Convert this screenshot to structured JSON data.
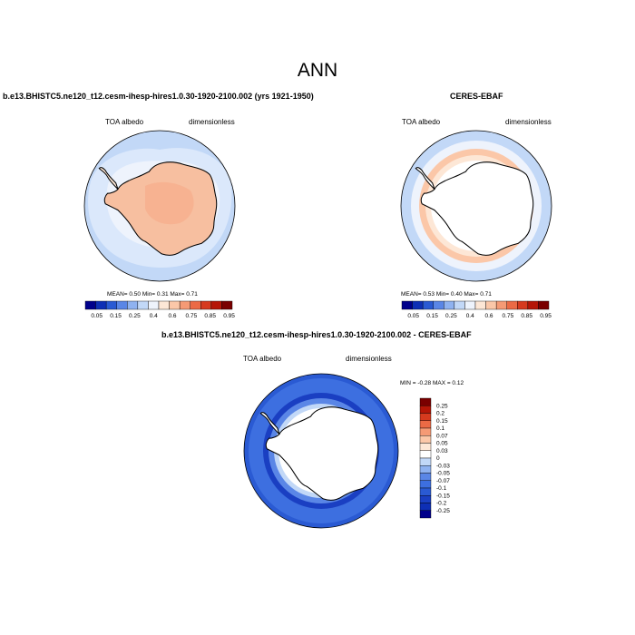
{
  "figure": {
    "title": "ANN"
  },
  "panels": [
    {
      "title": "b.e13.BHISTC5.ne120_t12.cesm-ihesp-hires1.0.30-1920-2100.002 (yrs 1921-1950)",
      "left_label": "TOA albedo",
      "right_label": "dimensionless",
      "stats": "MEAN=   0.50  Min=    0.31  Max=    0.71",
      "stats_values": {
        "mean": 0.5,
        "min": 0.31,
        "max": 0.71
      }
    },
    {
      "title": "CERES-EBAF",
      "left_label": "TOA albedo",
      "right_label": "dimensionless",
      "stats": "MEAN=   0.53  Min=    0.40  Max=    0.71",
      "stats_values": {
        "mean": 0.53,
        "min": 0.4,
        "max": 0.71
      }
    },
    {
      "title": "b.e13.BHISTC5.ne120_t12.cesm-ihesp-hires1.0.30-1920-2100.002 - CERES-EBAF",
      "left_label": "TOA albedo",
      "right_label": "dimensionless",
      "stats": "MIN =  -0.28 MAX =   0.12",
      "stats_values": {
        "min": -0.28,
        "max": 0.12
      }
    }
  ],
  "colorbars": {
    "absolute": {
      "colors": [
        "#00008b",
        "#0e2fb5",
        "#2a5ad3",
        "#5a86e6",
        "#8fb2f0",
        "#c2d8f7",
        "#eef3fc",
        "#fde7d6",
        "#fbc7a8",
        "#f59a75",
        "#eb6a45",
        "#d63a1e",
        "#b51607",
        "#7a0000"
      ],
      "labels": [
        "0.05",
        "0.15",
        "0.25",
        "0.4",
        "0.6",
        "0.75",
        "0.85",
        "0.95"
      ]
    },
    "difference": {
      "colors": [
        "#7a0000",
        "#b51607",
        "#d63a1e",
        "#eb6a45",
        "#f59a75",
        "#fbc7a8",
        "#fde7d6",
        "#ffffff",
        "#c2d8f7",
        "#8fb2f0",
        "#5a86e6",
        "#3d6fe0",
        "#2a5ad3",
        "#1a3fc2",
        "#0e2fb5",
        "#00008b"
      ],
      "labels": [
        "0.25",
        "0.2",
        "0.15",
        "0.1",
        "0.07",
        "0.05",
        "0.03",
        "0",
        "-0.03",
        "-0.05",
        "-0.07",
        "-0.1",
        "-0.15",
        "-0.2",
        "-0.25"
      ]
    }
  }
}
